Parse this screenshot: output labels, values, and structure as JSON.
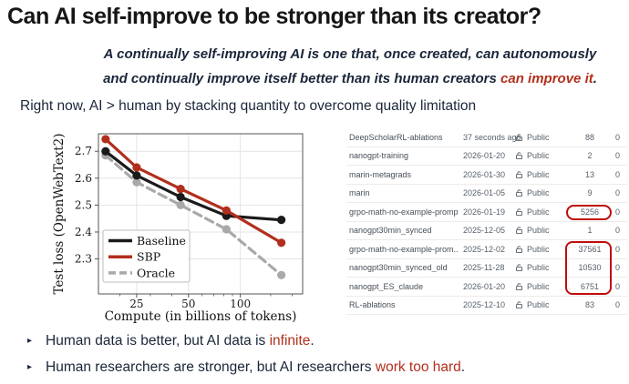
{
  "title": "Can AI self-improve to be stronger than its creator?",
  "subtitle": {
    "line1": "A continually self-improving AI is one that, once created, can autonomously",
    "line2_parts": [
      {
        "text": "and continually improve itself better than its human creators "
      },
      {
        "text": "can improve it",
        "em": true
      },
      {
        "text": "."
      }
    ]
  },
  "section_heading": "Right now, AI > human by stacking quantity to overcome quality limitation",
  "chart_data": {
    "type": "line",
    "xlabel": "Compute (in billions of tokens)",
    "ylabel": "Test loss (OpenWebText2)",
    "x_scale": "log",
    "xlim": [
      15,
      230
    ],
    "ylim": [
      2.17,
      2.765
    ],
    "x_ticks": [
      25,
      50,
      100
    ],
    "x_minor_ticks": [
      20,
      30,
      40,
      60,
      70,
      80,
      90,
      150,
      200
    ],
    "y_ticks": [
      2.3,
      2.4,
      2.5,
      2.6,
      2.7
    ],
    "grid": true,
    "legend_position": "lower left",
    "x": [
      16.5,
      25,
      45,
      83,
      173
    ],
    "series": [
      {
        "name": "Baseline",
        "color": "#1a1a1a",
        "dash": "solid",
        "values": [
          2.7,
          2.61,
          2.53,
          2.46,
          2.445
        ]
      },
      {
        "name": "SBP",
        "color": "#b22e1c",
        "dash": "solid",
        "values": [
          2.745,
          2.64,
          2.56,
          2.48,
          2.36
        ]
      },
      {
        "name": "Oracle",
        "color": "#a9a9a9",
        "dash": "dashed",
        "values": [
          2.685,
          2.585,
          2.5,
          2.41,
          2.24
        ]
      }
    ]
  },
  "repo_table": {
    "rows": [
      {
        "name": "DeepScholarRL-ablations",
        "updated": "37 seconds ago",
        "visibility": "Public",
        "count": "88",
        "extra": "0",
        "highlight": "none"
      },
      {
        "name": "nanogpt-training",
        "updated": "2026-01-20",
        "visibility": "Public",
        "count": "2",
        "extra": "0",
        "highlight": "none"
      },
      {
        "name": "marin-metagrads",
        "updated": "2026-01-30",
        "visibility": "Public",
        "count": "13",
        "extra": "0",
        "highlight": "none"
      },
      {
        "name": "marin",
        "updated": "2026-01-05",
        "visibility": "Public",
        "count": "9",
        "extra": "0",
        "highlight": "none"
      },
      {
        "name": "grpo-math-no-example-prompt",
        "updated": "2026-01-19",
        "visibility": "Public",
        "count": "5256",
        "extra": "0",
        "highlight": "circle"
      },
      {
        "name": "nanogpt30min_synced",
        "updated": "2025-12-05",
        "visibility": "Public",
        "count": "1",
        "extra": "0",
        "highlight": "none"
      },
      {
        "name": "grpo-math-no-example-prom...",
        "updated": "2025-12-02",
        "visibility": "Public",
        "count": "37561",
        "extra": "0",
        "highlight": "group"
      },
      {
        "name": "nanogpt30min_synced_old",
        "updated": "2025-11-28",
        "visibility": "Public",
        "count": "10530",
        "extra": "0",
        "highlight": "group"
      },
      {
        "name": "nanogpt_ES_claude",
        "updated": "2026-01-20",
        "visibility": "Public",
        "count": "6751",
        "extra": "0",
        "highlight": "group"
      },
      {
        "name": "RL-ablations",
        "updated": "2025-12-10",
        "visibility": "Public",
        "count": "83",
        "extra": "0",
        "highlight": "none"
      }
    ]
  },
  "bullets": [
    {
      "parts": [
        {
          "text": "Human data is better, but AI data is "
        },
        {
          "text": "infinite",
          "em": true
        },
        {
          "text": "."
        }
      ]
    },
    {
      "parts": [
        {
          "text": "Human researchers are stronger, but AI researchers "
        },
        {
          "text": "work too hard",
          "em": true
        },
        {
          "text": "."
        }
      ]
    }
  ],
  "colors": {
    "accent_red": "#b2301d",
    "annotation_red": "#c00c0c",
    "body_navy": "#1a2639",
    "table_text": "#57606a"
  }
}
